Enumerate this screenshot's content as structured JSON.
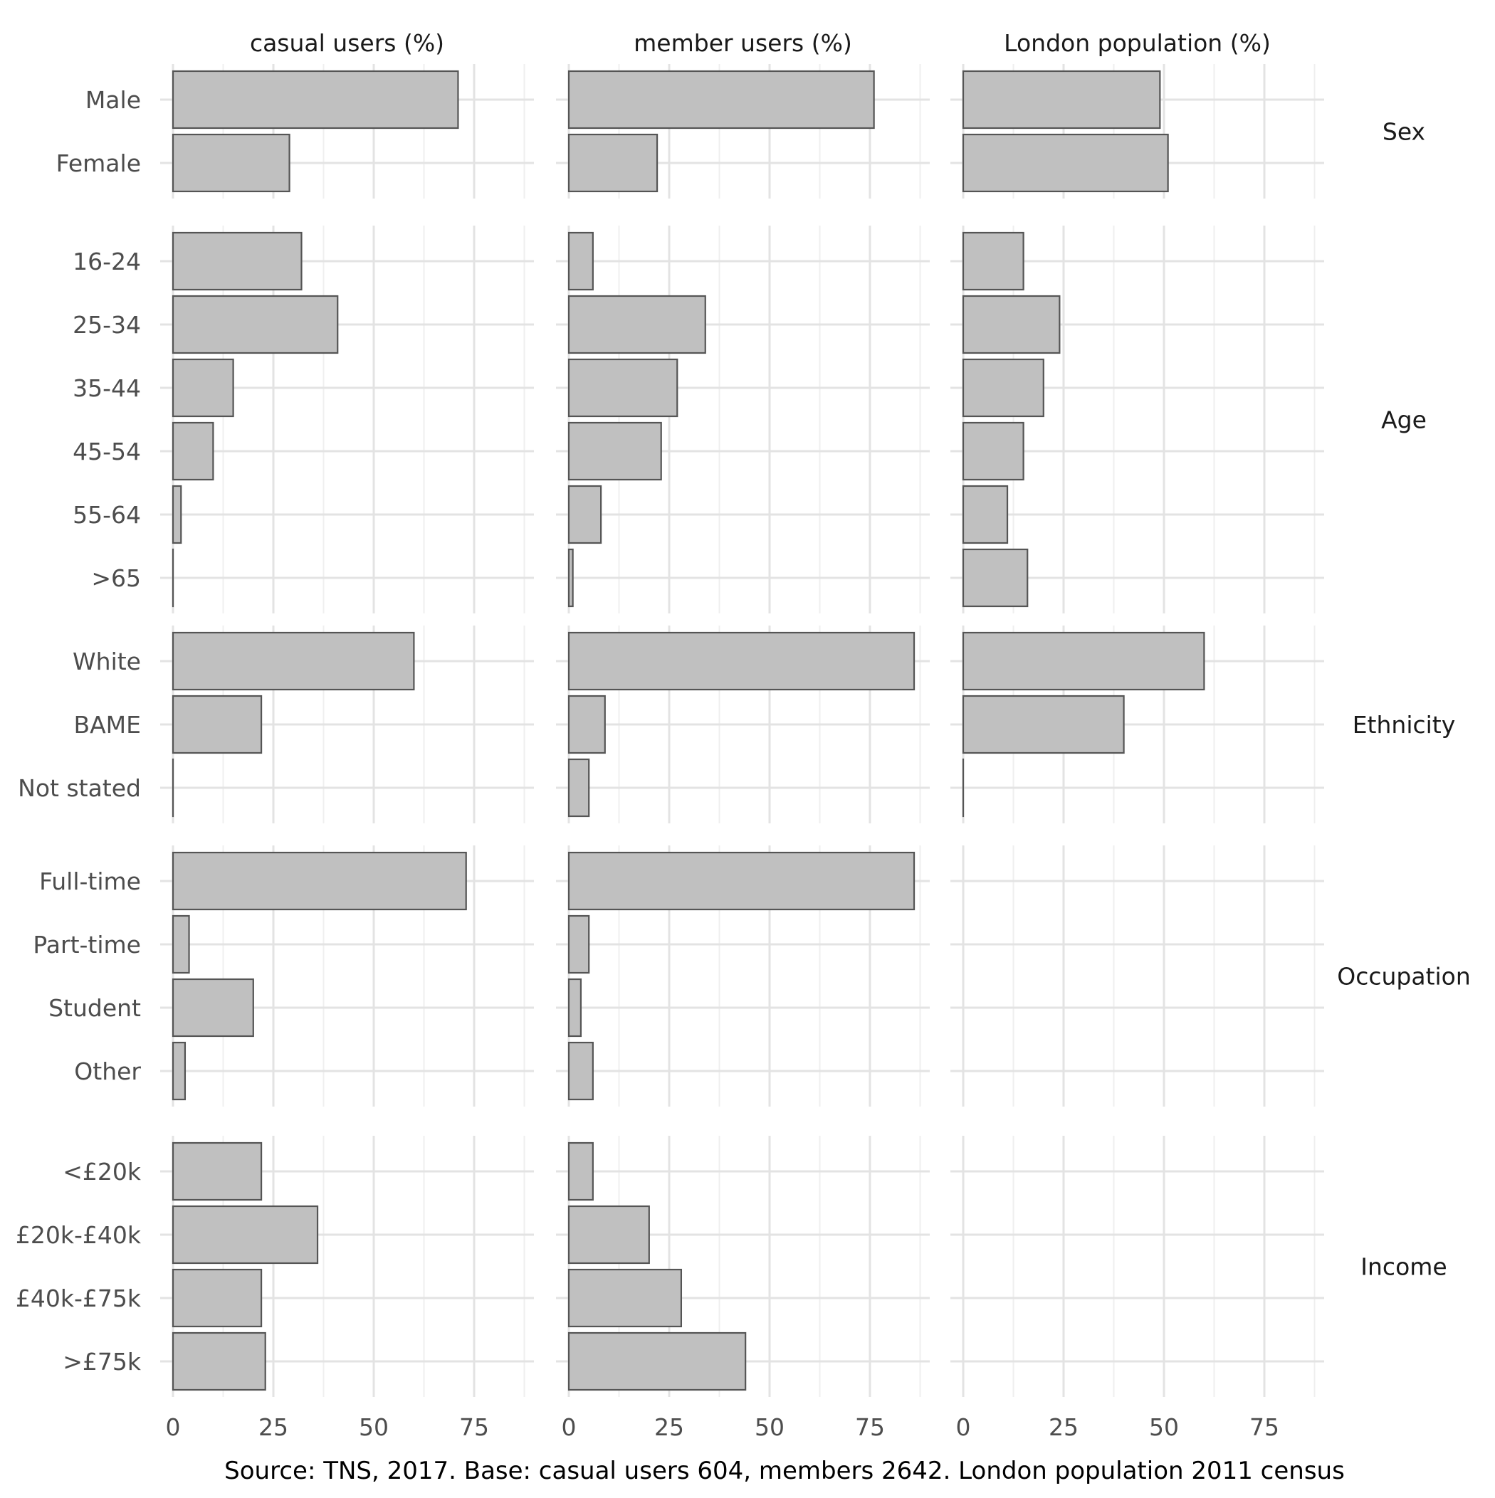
{
  "chart_data": {
    "type": "bar",
    "orientation": "horizontal",
    "facet_columns": [
      "casual users (%)",
      "member users (%)",
      "London population (%)"
    ],
    "x_ticks": [
      0,
      25,
      50,
      75
    ],
    "xlim": [
      0,
      90
    ],
    "grid": true,
    "caption": "Source: TNS, 2017. Base: casual users 604, members 2642. London population 2011 census",
    "groups": [
      {
        "name": "Sex",
        "categories": [
          "Male",
          "Female"
        ],
        "series": [
          {
            "name": "casual users (%)",
            "values": [
              71,
              29
            ]
          },
          {
            "name": "member users (%)",
            "values": [
              76,
              22
            ]
          },
          {
            "name": "London population (%)",
            "values": [
              49,
              51
            ]
          }
        ]
      },
      {
        "name": "Age",
        "categories": [
          "16-24",
          "25-34",
          "35-44",
          "45-54",
          "55-64",
          ">65"
        ],
        "series": [
          {
            "name": "casual users (%)",
            "values": [
              32,
              41,
              15,
              10,
              2,
              0
            ]
          },
          {
            "name": "member users (%)",
            "values": [
              6,
              34,
              27,
              23,
              8,
              1
            ]
          },
          {
            "name": "London population (%)",
            "values": [
              15,
              24,
              20,
              15,
              11,
              16
            ]
          }
        ]
      },
      {
        "name": "Ethnicity",
        "categories": [
          "White",
          "BAME",
          "Not stated"
        ],
        "series": [
          {
            "name": "casual users (%)",
            "values": [
              60,
              22,
              0
            ]
          },
          {
            "name": "member users (%)",
            "values": [
              86,
              9,
              5
            ]
          },
          {
            "name": "London population (%)",
            "values": [
              60,
              40,
              0
            ]
          }
        ]
      },
      {
        "name": "Occupation",
        "categories": [
          "Full-time",
          "Part-time",
          "Student",
          "Other"
        ],
        "series": [
          {
            "name": "casual users (%)",
            "values": [
              73,
              4,
              20,
              3
            ]
          },
          {
            "name": "member users (%)",
            "values": [
              86,
              5,
              3,
              6
            ]
          },
          {
            "name": "London population (%)",
            "values": [
              null,
              null,
              null,
              null
            ]
          }
        ]
      },
      {
        "name": "Income",
        "categories": [
          "<£20k",
          "£20k-£40k",
          "£40k-£75k",
          ">£75k"
        ],
        "series": [
          {
            "name": "casual users (%)",
            "values": [
              22,
              36,
              22,
              23
            ]
          },
          {
            "name": "member users (%)",
            "values": [
              6,
              20,
              28,
              44
            ]
          },
          {
            "name": "London population (%)",
            "values": [
              null,
              null,
              null,
              null
            ]
          }
        ]
      }
    ],
    "colors": {
      "bar_fill": "#c0c0c0",
      "bar_stroke": "#555555",
      "grid_major": "#e3e3e3",
      "grid_minor": "#efefef",
      "tick_text": "#4d4d4d",
      "strip_text": "#1a1a1a"
    }
  }
}
